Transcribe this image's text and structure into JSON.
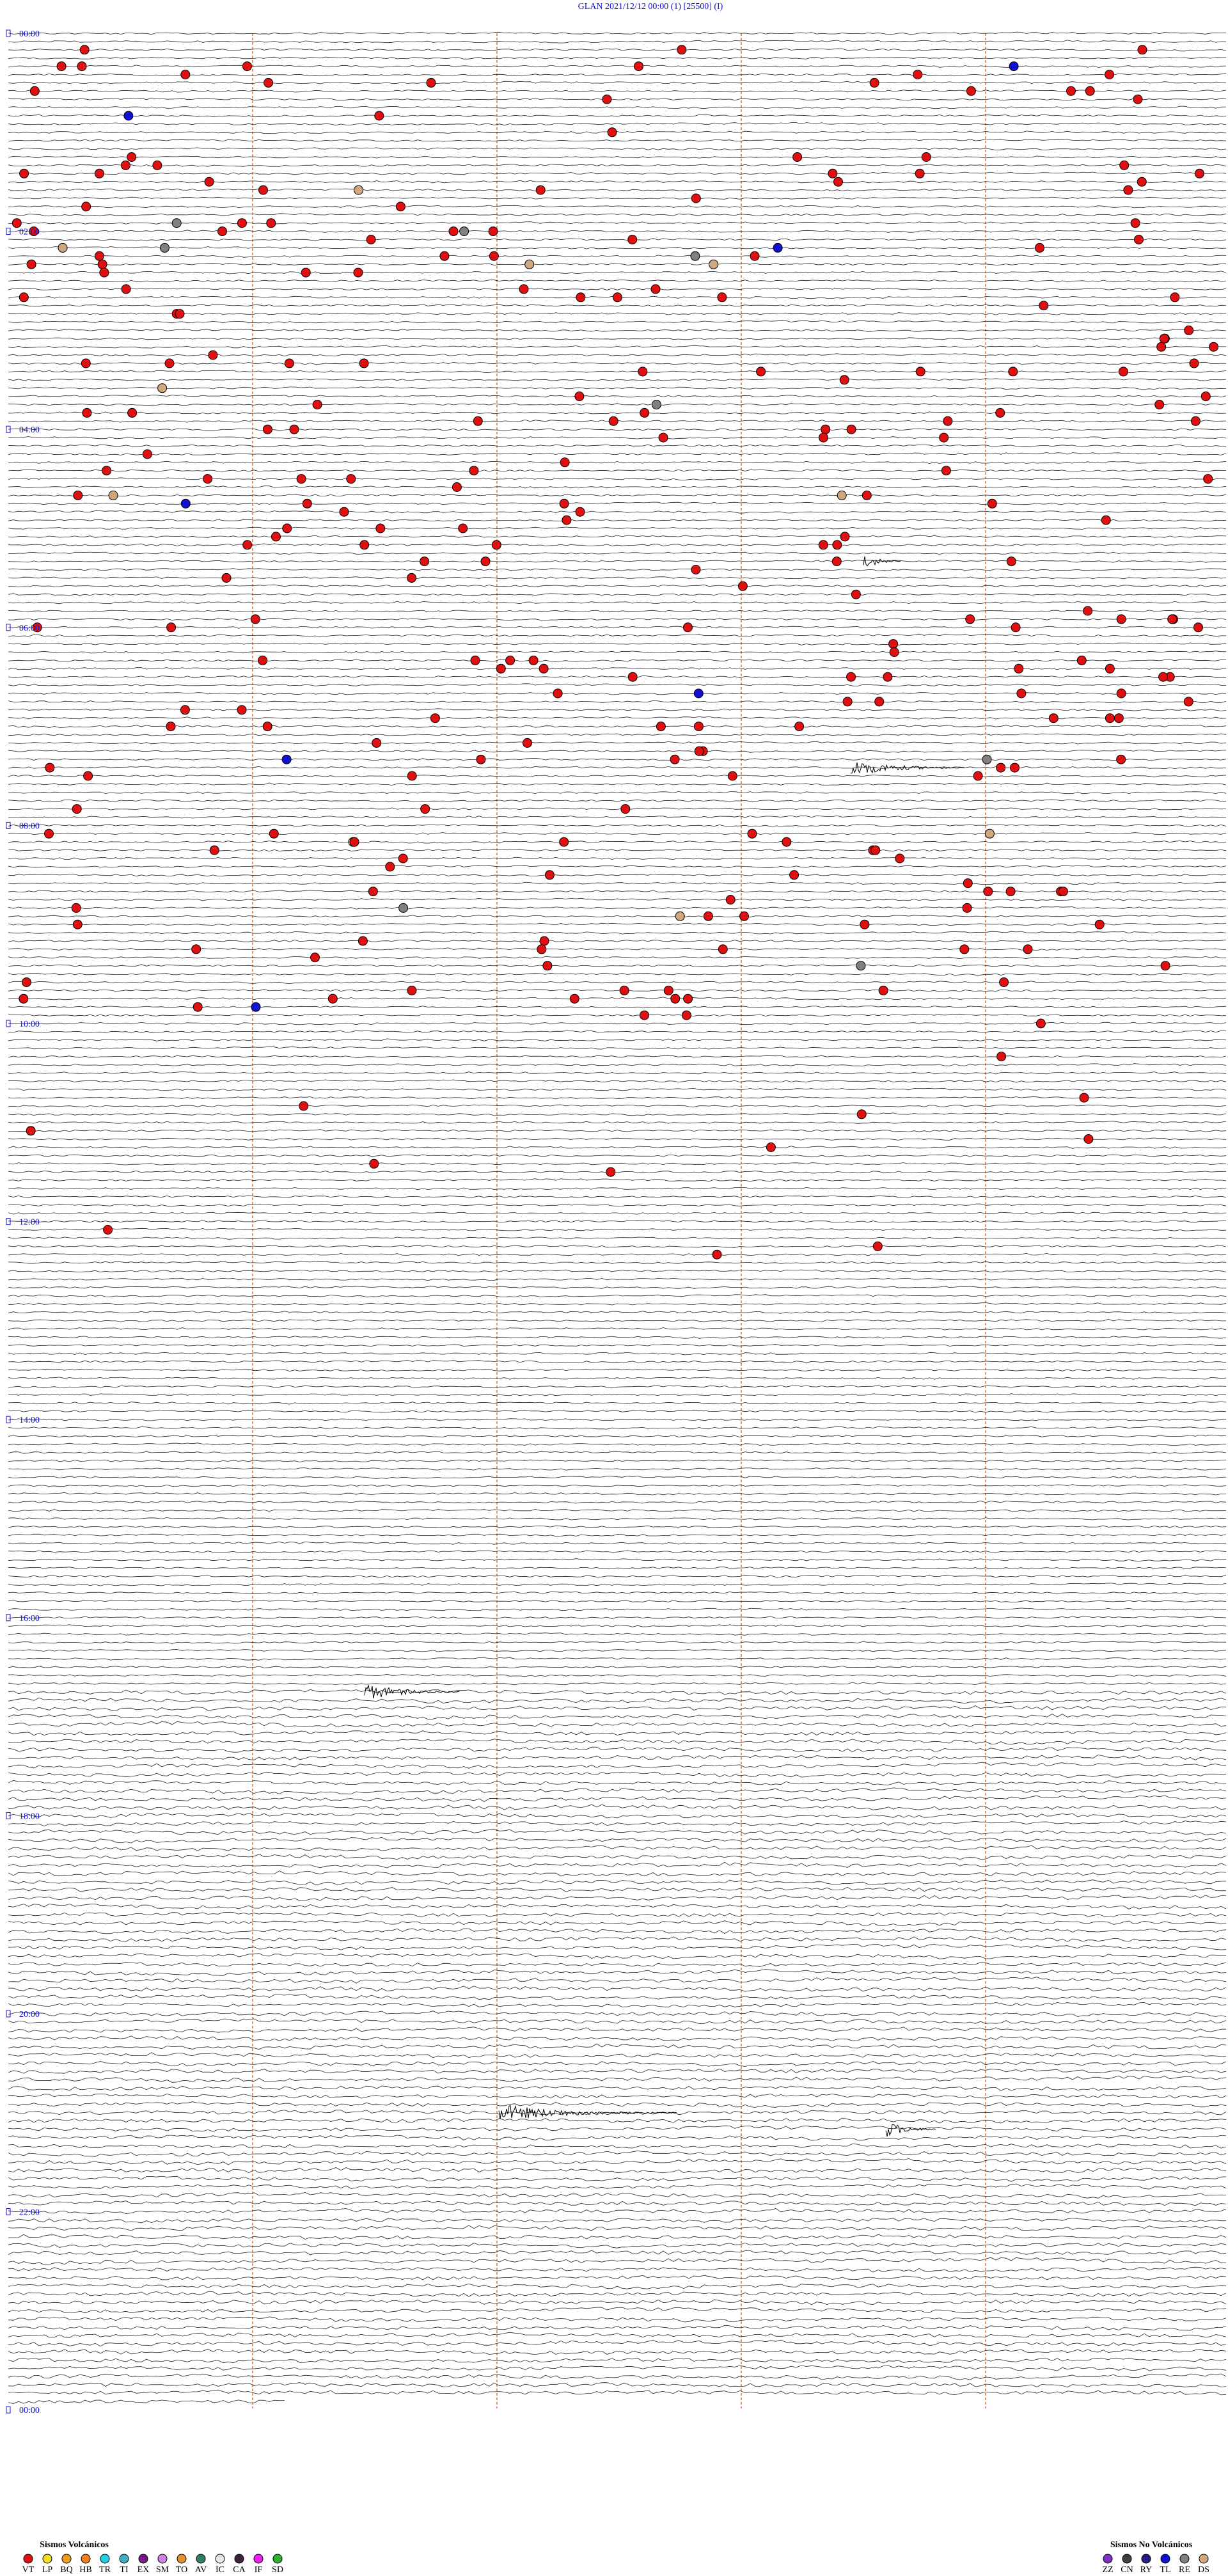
{
  "header": {
    "title": "GLAN     2021/12/12 00:00     (1)     [25500]     (I)"
  },
  "time_labels": [
    "00:00",
    "02:00",
    "04:00",
    "06:00",
    "08:00",
    "10:00",
    "12:00",
    "14:00",
    "16:00",
    "18:00",
    "20:00",
    "22:00",
    "00:00"
  ],
  "legend": {
    "volcanic": {
      "title": "Sismos Volcánicos",
      "items": [
        {
          "code": "VT",
          "color": "#e01010"
        },
        {
          "code": "LP",
          "color": "#f0e020"
        },
        {
          "code": "BQ",
          "color": "#f0a020"
        },
        {
          "code": "HB",
          "color": "#f08020"
        },
        {
          "code": "TR",
          "color": "#20d0e0"
        },
        {
          "code": "TI",
          "color": "#40b0c0"
        },
        {
          "code": "EX",
          "color": "#702080"
        },
        {
          "code": "SM",
          "color": "#d080e0"
        },
        {
          "code": "TO",
          "color": "#e09030"
        },
        {
          "code": "AV",
          "color": "#308060"
        },
        {
          "code": "IC",
          "color": "#e8e8e8"
        },
        {
          "code": "CA",
          "color": "#402040"
        },
        {
          "code": "IF",
          "color": "#f020f0"
        },
        {
          "code": "SD",
          "color": "#30b030"
        }
      ]
    },
    "non_volcanic": {
      "title": "Sismos No Volcánicos",
      "items": [
        {
          "code": "ZZ",
          "color": "#8030c0"
        },
        {
          "code": "CN",
          "color": "#404040"
        },
        {
          "code": "RY",
          "color": "#202080"
        },
        {
          "code": "TL",
          "color": "#1010d0"
        },
        {
          "code": "RE",
          "color": "#808080"
        },
        {
          "code": "DS",
          "color": "#d0a880"
        }
      ]
    }
  }
}
